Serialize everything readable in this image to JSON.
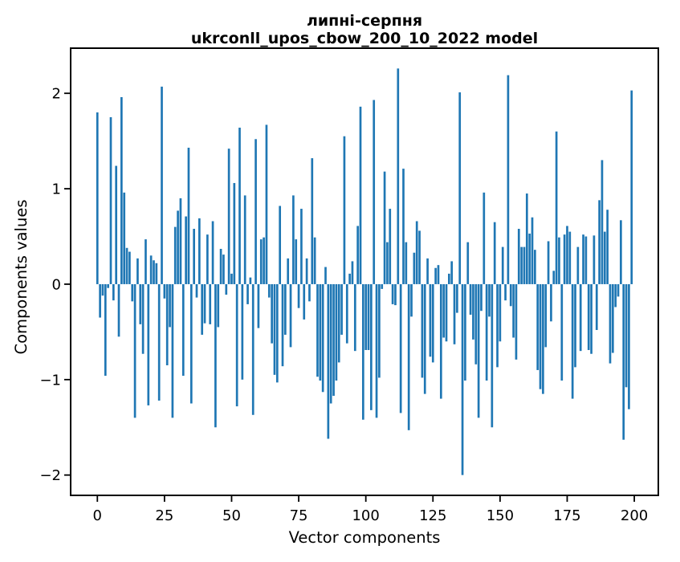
{
  "figure": {
    "background_color": "#ffffff",
    "text_color": "#000000"
  },
  "chart_data": {
    "type": "bar",
    "title": "липні-серпня",
    "subtitle": "ukrconll_upos_cbow_200_10_2022 model",
    "xlabel": "Vector components",
    "ylabel": "Components values",
    "bar_color": "#1f77b4",
    "grid": false,
    "legend": "none",
    "xticks": [
      0,
      25,
      50,
      75,
      100,
      125,
      150,
      175,
      200
    ],
    "yticks": [
      -2,
      -1,
      0,
      1,
      2
    ],
    "xlim": [
      -9.95,
      208.95
    ],
    "ylim": [
      -2.213,
      2.473
    ],
    "n_bars": 200,
    "x": "vector component index 0..199",
    "values": [
      1.8,
      -0.35,
      -0.12,
      -0.96,
      -0.04,
      1.75,
      -0.17,
      1.24,
      -0.55,
      1.96,
      0.96,
      0.38,
      0.34,
      -0.18,
      -1.4,
      0.27,
      -0.42,
      -0.73,
      0.47,
      -1.27,
      0.3,
      0.25,
      0.22,
      -1.22,
      2.07,
      -0.15,
      -0.85,
      -0.45,
      -1.4,
      0.6,
      0.77,
      0.9,
      -0.96,
      0.71,
      1.43,
      -1.25,
      0.58,
      -0.14,
      0.69,
      -0.53,
      -0.41,
      0.52,
      -0.42,
      0.66,
      -1.5,
      -0.45,
      0.37,
      0.31,
      -0.11,
      1.42,
      0.11,
      1.06,
      -1.28,
      1.64,
      -1.0,
      0.93,
      -0.21,
      0.07,
      -1.37,
      1.52,
      -0.46,
      0.47,
      0.49,
      1.67,
      -0.14,
      -0.62,
      -0.95,
      -1.03,
      0.82,
      -0.86,
      -0.53,
      0.27,
      -0.66,
      0.93,
      0.47,
      -0.25,
      0.79,
      -0.37,
      0.27,
      -0.18,
      1.32,
      0.49,
      -0.97,
      -1.01,
      -1.13,
      0.18,
      -1.62,
      -1.25,
      -1.17,
      -1.01,
      -0.82,
      -0.53,
      1.55,
      -0.62,
      0.11,
      0.24,
      -0.7,
      0.61,
      1.86,
      -1.42,
      -0.69,
      -0.69,
      -1.32,
      1.93,
      -1.4,
      -0.98,
      -0.05,
      1.18,
      0.44,
      0.79,
      -0.21,
      -0.22,
      2.26,
      -1.35,
      1.21,
      0.44,
      -1.53,
      -0.34,
      0.33,
      0.66,
      0.56,
      -0.98,
      -1.15,
      0.27,
      -0.76,
      -0.82,
      0.17,
      0.2,
      -1.2,
      -0.56,
      -0.6,
      0.11,
      0.24,
      -0.63,
      -0.3,
      2.01,
      -2.0,
      -1.01,
      0.44,
      -0.32,
      -0.58,
      -0.84,
      -1.4,
      -0.28,
      0.96,
      -1.01,
      -0.34,
      -1.5,
      0.65,
      -0.87,
      -0.6,
      0.39,
      -0.17,
      2.19,
      -0.23,
      -0.56,
      -0.79,
      0.58,
      0.39,
      0.39,
      0.95,
      0.53,
      0.7,
      0.36,
      -0.9,
      -1.1,
      -1.15,
      -0.66,
      0.45,
      -0.39,
      0.14,
      1.6,
      0.49,
      -1.01,
      0.52,
      0.61,
      0.55,
      -1.2,
      -0.87,
      0.39,
      -0.7,
      0.52,
      0.5,
      -0.69,
      -0.73,
      0.51,
      -0.48,
      0.88,
      1.3,
      0.55,
      0.78,
      -0.83,
      -0.72,
      -0.24,
      -0.13,
      0.67,
      -1.63,
      -1.08,
      -1.31,
      2.03
    ]
  }
}
